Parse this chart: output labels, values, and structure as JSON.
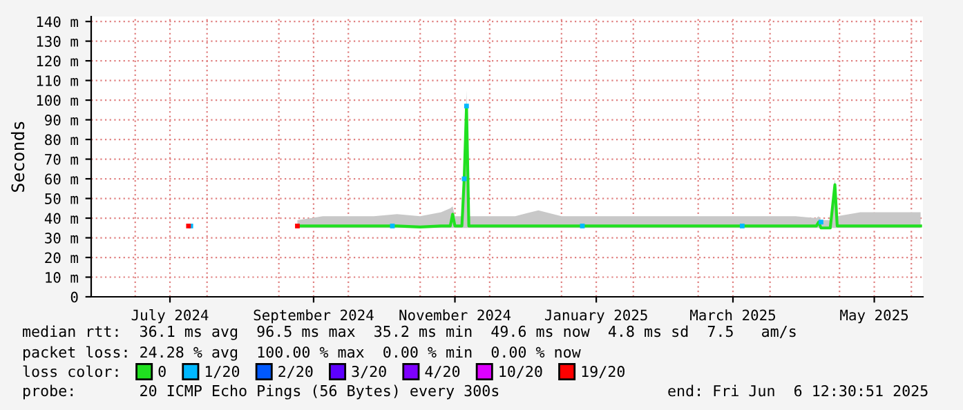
{
  "chart_data": {
    "type": "line",
    "ylabel": "Seconds",
    "xlim": [
      "2024-06-12",
      "2025-06-06"
    ],
    "xticks": [
      {
        "value": "2024-07-01",
        "label": null
      },
      {
        "value": "2024-07-16",
        "label": "July 2024"
      },
      {
        "value": "2024-08-01",
        "label": null
      },
      {
        "value": "2024-09-01",
        "label": null
      },
      {
        "value": "2024-09-16",
        "label": "September 2024"
      },
      {
        "value": "2024-10-01",
        "label": null
      },
      {
        "value": "2024-11-01",
        "label": null
      },
      {
        "value": "2024-11-16",
        "label": "November 2024"
      },
      {
        "value": "2024-12-01",
        "label": null
      },
      {
        "value": "2025-01-01",
        "label": null
      },
      {
        "value": "2025-01-16",
        "label": "January 2025"
      },
      {
        "value": "2025-02-01",
        "label": null
      },
      {
        "value": "2025-03-01",
        "label": null
      },
      {
        "value": "2025-03-16",
        "label": "March 2025"
      },
      {
        "value": "2025-04-01",
        "label": null
      },
      {
        "value": "2025-05-01",
        "label": null
      },
      {
        "value": "2025-05-16",
        "label": "May 2025"
      },
      {
        "value": "2025-06-01",
        "label": null
      }
    ],
    "ylim": [
      0,
      142.5
    ],
    "yticks": [
      0,
      {
        "value": 10,
        "label": "10 m"
      },
      {
        "value": 20,
        "label": "20 m"
      },
      {
        "value": 30,
        "label": "30 m"
      },
      {
        "value": 40,
        "label": "40 m"
      },
      {
        "value": 50,
        "label": "50 m"
      },
      {
        "value": 60,
        "label": "60 m"
      },
      {
        "value": 70,
        "label": "70 m"
      },
      {
        "value": 80,
        "label": "80 m"
      },
      {
        "value": 90,
        "label": "90 m"
      },
      {
        "value": 100,
        "label": "100 m"
      },
      {
        "value": 110,
        "label": "110 m"
      },
      {
        "value": 120,
        "label": "120 m"
      },
      {
        "value": 130,
        "label": "130 m"
      },
      {
        "value": 140,
        "label": "140 m"
      }
    ],
    "grid": true,
    "legend": "bottom",
    "series": [
      {
        "name": "0",
        "color": "#20e020",
        "x": [
          "2024-09-09",
          "2024-09-20",
          "2024-10-01",
          "2024-10-12",
          "2024-10-22",
          "2024-11-01",
          "2024-11-10",
          "2024-11-14",
          "2024-11-15",
          "2024-11-16",
          "2024-11-19",
          "2024-11-20",
          "2024-11-21",
          "2024-11-22",
          "2024-12-01",
          "2024-12-12",
          "2024-12-22",
          "2025-01-01",
          "2025-01-12",
          "2025-01-22",
          "2025-02-01",
          "2025-02-12",
          "2025-02-22",
          "2025-03-01",
          "2025-03-12",
          "2025-03-22",
          "2025-04-01",
          "2025-04-12",
          "2025-04-21",
          "2025-04-22",
          "2025-04-23",
          "2025-04-27",
          "2025-04-29",
          "2025-04-30",
          "2025-05-10",
          "2025-05-20",
          "2025-06-05"
        ],
        "values": [
          36,
          36,
          36,
          36,
          36,
          35.5,
          36,
          36,
          42,
          36,
          36,
          60,
          97,
          36,
          36,
          36,
          36,
          36,
          36,
          36,
          36,
          36,
          36,
          36,
          36,
          36,
          36,
          36,
          36,
          38,
          35,
          35,
          57,
          36,
          36,
          36,
          36
        ],
        "lower": [
          35,
          35,
          35,
          35,
          35,
          35,
          35,
          35,
          35,
          35,
          35,
          35,
          35,
          35,
          35,
          35,
          35,
          35,
          35,
          35,
          35,
          35,
          35,
          35,
          35,
          35,
          35,
          35,
          35,
          35,
          35,
          35,
          35,
          35,
          35,
          35,
          35
        ],
        "upper": [
          39,
          41,
          41,
          41,
          42,
          41,
          43,
          45,
          46,
          41,
          41,
          62,
          105,
          41,
          41,
          41,
          44,
          41,
          41,
          41,
          41,
          41,
          41,
          41,
          41,
          41,
          41,
          41,
          40,
          41,
          39,
          39,
          60,
          41,
          43,
          43,
          43
        ]
      },
      {
        "name": "1/20",
        "color": "#00b8ff",
        "type": "scatter",
        "x": [
          "2024-07-25",
          "2024-10-20",
          "2024-11-20",
          "2024-11-21",
          "2025-01-10",
          "2025-03-20",
          "2025-04-23"
        ],
        "values": [
          36,
          36,
          60,
          97,
          36,
          36,
          38
        ]
      },
      {
        "name": "2/20",
        "color": "#0059ff",
        "type": "scatter"
      },
      {
        "name": "3/20",
        "color": "#5e00ff",
        "type": "scatter"
      },
      {
        "name": "4/20",
        "color": "#7e00ff",
        "type": "scatter"
      },
      {
        "name": "10/20",
        "color": "#dd00ff",
        "type": "scatter"
      },
      {
        "name": "19/20",
        "color": "#ff0000",
        "type": "scatter",
        "x": [
          "2024-07-24",
          "2024-09-09"
        ],
        "values": [
          36,
          36
        ]
      }
    ],
    "annotations": [
      "median rtt:  36.1 ms avg  96.5 ms max  35.2 ms min  49.6 ms now  4.8 ms sd  7.5   am/s",
      "packet loss: 24.28 % avg  100.00 % max  0.00 % min  0.00 % now",
      "loss color:",
      "probe:       20 ICMP Echo Pings (56 Bytes) every 300s",
      "end: Fri Jun  6 12:30:51 2025"
    ]
  }
}
